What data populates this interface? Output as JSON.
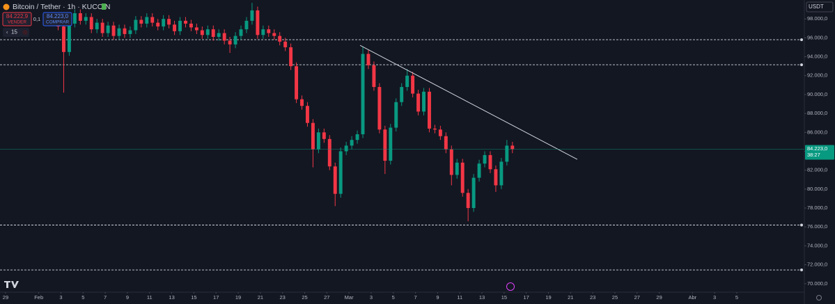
{
  "chart_data": {
    "type": "candlestick",
    "title": "Bitcoin / Tether · 1h · KUCOIN",
    "up_color": "#089981",
    "down_color": "#f23645",
    "x": [
      4.5,
      5,
      5.5,
      6,
      6.5,
      7,
      7.5,
      8,
      8.5,
      9,
      9.5,
      10,
      10.5,
      11,
      11.5,
      12,
      12.5,
      13,
      13.5,
      14,
      14.5,
      15,
      15.5,
      16,
      16.5,
      17,
      17.5,
      18,
      18.5,
      19,
      19.5,
      20,
      20.5,
      21,
      21.5,
      22,
      22.5,
      23,
      23.5,
      24,
      24.5,
      25,
      25.5,
      26,
      26.5,
      27,
      27.5,
      28,
      28.5,
      29,
      29.5,
      30,
      30.5,
      31,
      31.5,
      32,
      32.5,
      33,
      33.5,
      34,
      34.5,
      35,
      35.5,
      36,
      36.5,
      37,
      37.5,
      38,
      38.5,
      39,
      39.5,
      40,
      40.5,
      41,
      41.5,
      42,
      42.5,
      43,
      43.5,
      44,
      44.5,
      45,
      45.5
    ],
    "open": [
      98000,
      97200,
      94500,
      97500,
      98600,
      97800,
      98200,
      96900,
      97600,
      96500,
      97300,
      96200,
      97000,
      96400,
      96800,
      97900,
      97500,
      98200,
      97600,
      97200,
      98000,
      97400,
      96700,
      97800,
      97500,
      97100,
      96800,
      96300,
      96900,
      96100,
      96500,
      95700,
      95300,
      96200,
      96900,
      97800,
      98900,
      96300,
      96900,
      96500,
      96200,
      95600,
      95000,
      93000,
      89500,
      88800,
      87000,
      84200,
      86000,
      85300,
      82400,
      79500,
      84000,
      84600,
      85200,
      85800,
      94300,
      93100,
      90800,
      86300,
      83000,
      86500,
      89200,
      90800,
      92000,
      90100,
      88200,
      90300,
      86400,
      86300,
      85600,
      84200,
      81500,
      82800,
      79600,
      78000,
      81200,
      82700,
      83600,
      82100,
      80400,
      82900,
      84600
    ],
    "high": [
      98400,
      97600,
      97900,
      99000,
      99000,
      98600,
      98600,
      98000,
      98000,
      97700,
      97700,
      97400,
      97400,
      97200,
      98300,
      98300,
      98600,
      98600,
      98000,
      98400,
      98400,
      97800,
      98200,
      98200,
      97900,
      97500,
      97200,
      97300,
      97300,
      96900,
      96900,
      96100,
      96600,
      97300,
      98200,
      99700,
      99300,
      97300,
      97300,
      96900,
      96600,
      96000,
      95400,
      93400,
      89900,
      89200,
      87400,
      86400,
      86400,
      85700,
      82800,
      84400,
      85000,
      85600,
      86200,
      95100,
      94700,
      93500,
      91200,
      86700,
      86900,
      89600,
      91200,
      92700,
      92400,
      90500,
      90700,
      90700,
      86800,
      86700,
      86000,
      84600,
      83200,
      83200,
      80000,
      81600,
      83100,
      84000,
      84000,
      82500,
      83300,
      85200,
      85000
    ],
    "low": [
      96800,
      90200,
      94100,
      97100,
      97400,
      97400,
      96500,
      96500,
      96100,
      96100,
      95800,
      95800,
      96000,
      96000,
      96400,
      97100,
      97100,
      97200,
      96800,
      96800,
      97000,
      96300,
      96300,
      97100,
      96700,
      96400,
      95900,
      95900,
      95700,
      95700,
      95300,
      94400,
      94900,
      95800,
      96500,
      97400,
      95900,
      95900,
      96100,
      95800,
      95200,
      94600,
      92600,
      89100,
      88400,
      86600,
      82300,
      83800,
      84900,
      82000,
      78200,
      79100,
      83600,
      84200,
      84800,
      85400,
      92700,
      90400,
      85900,
      81600,
      82600,
      86100,
      88800,
      90400,
      89700,
      87800,
      87800,
      86000,
      85900,
      85200,
      83800,
      80400,
      81100,
      79200,
      76600,
      77600,
      80800,
      82300,
      81700,
      79700,
      80000,
      82500,
      83800
    ],
    "close": [
      97200,
      94500,
      97500,
      98600,
      97800,
      98200,
      96900,
      97600,
      96500,
      97300,
      96200,
      97000,
      96400,
      96800,
      97900,
      97500,
      98200,
      97600,
      97200,
      98000,
      97400,
      96700,
      97800,
      97500,
      97100,
      96800,
      96300,
      96900,
      96100,
      96500,
      95700,
      95300,
      96200,
      96900,
      97800,
      98900,
      96300,
      96900,
      96500,
      96200,
      95600,
      95000,
      93000,
      89500,
      88800,
      87000,
      84200,
      86000,
      85300,
      82400,
      79500,
      84000,
      84600,
      85200,
      85800,
      94300,
      93100,
      90800,
      86300,
      83000,
      86500,
      89200,
      90800,
      92000,
      90100,
      88200,
      90300,
      86400,
      86300,
      85600,
      84200,
      81500,
      82800,
      79600,
      78000,
      81200,
      82700,
      83600,
      82100,
      80400,
      82900,
      84600,
      84223
    ],
    "xlim": [
      -0.5,
      72.1
    ],
    "xticks": [
      {
        "value": 0,
        "label": "29"
      },
      {
        "value": 3,
        "label": "Feb"
      },
      {
        "value": 5,
        "label": "3"
      },
      {
        "value": 7,
        "label": "5"
      },
      {
        "value": 9,
        "label": "7"
      },
      {
        "value": 11,
        "label": "9"
      },
      {
        "value": 13,
        "label": "11"
      },
      {
        "value": 15,
        "label": "13"
      },
      {
        "value": 17,
        "label": "15"
      },
      {
        "value": 19,
        "label": "17"
      },
      {
        "value": 21,
        "label": "19"
      },
      {
        "value": 23,
        "label": "21"
      },
      {
        "value": 25,
        "label": "23"
      },
      {
        "value": 27,
        "label": "25"
      },
      {
        "value": 29,
        "label": "27"
      },
      {
        "value": 31,
        "label": "Mar"
      },
      {
        "value": 33,
        "label": "3"
      },
      {
        "value": 35,
        "label": "5"
      },
      {
        "value": 37,
        "label": "7"
      },
      {
        "value": 39,
        "label": "9"
      },
      {
        "value": 41,
        "label": "11"
      },
      {
        "value": 43,
        "label": "13"
      },
      {
        "value": 45,
        "label": "15"
      },
      {
        "value": 47,
        "label": "17"
      },
      {
        "value": 49,
        "label": "19"
      },
      {
        "value": 51,
        "label": "21"
      },
      {
        "value": 53,
        "label": "23"
      },
      {
        "value": 55,
        "label": "25"
      },
      {
        "value": 57,
        "label": "27"
      },
      {
        "value": 59,
        "label": "29"
      },
      {
        "value": 62,
        "label": "Abr"
      },
      {
        "value": 64,
        "label": "3"
      },
      {
        "value": 66,
        "label": "5"
      }
    ],
    "ylim": [
      69100,
      100000
    ],
    "yticks": [
      {
        "value": 70000,
        "label": "70.000,0"
      },
      {
        "value": 72000,
        "label": "72.000,0"
      },
      {
        "value": 74000,
        "label": "74.000,0"
      },
      {
        "value": 76000,
        "label": "76.000,0"
      },
      {
        "value": 78000,
        "label": "78.000,0"
      },
      {
        "value": 80000,
        "label": "80.000,0"
      },
      {
        "value": 82000,
        "label": "82.000,0"
      },
      {
        "value": 84000,
        "label": "84.000,0"
      },
      {
        "value": 86000,
        "label": "86.000,0"
      },
      {
        "value": 88000,
        "label": "88.000,0"
      },
      {
        "value": 90000,
        "label": "90.000,0"
      },
      {
        "value": 92000,
        "label": "92.000,0"
      },
      {
        "value": 94000,
        "label": "94.000,0"
      },
      {
        "value": 96000,
        "label": "96.000,0"
      },
      {
        "value": 98000,
        "label": "98.000,0"
      }
    ],
    "levels": [
      95800,
      93150,
      76200,
      71450
    ],
    "trendline": {
      "x": [
        32,
        51.6
      ],
      "values": [
        95200,
        83150
      ]
    },
    "last_price": {
      "value": 84223,
      "label": "84.223,0",
      "countdown": "38:27"
    }
  },
  "toolbar": {
    "sell_price": "84.222,9",
    "sell_label": "VENDER",
    "spread": "0,1",
    "buy_price": "84.223,0",
    "buy_label": "COMPRAR",
    "count": 15,
    "currency": "USDT"
  }
}
